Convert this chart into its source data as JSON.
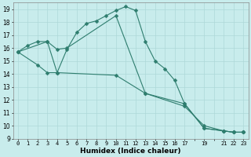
{
  "xlabel": "Humidex (Indice chaleur)",
  "bg_color": "#c8ecec",
  "grid_color": "#aed8d8",
  "line_color": "#2e7d6e",
  "line1_x": [
    0,
    1,
    2,
    3,
    4,
    5,
    6,
    7,
    8,
    9,
    10,
    11,
    12,
    13,
    14,
    15,
    16,
    17,
    19,
    21,
    22,
    23
  ],
  "line1_y": [
    15.7,
    16.2,
    16.5,
    16.5,
    14.1,
    15.9,
    17.2,
    17.9,
    18.1,
    18.5,
    18.9,
    19.2,
    18.9,
    16.5,
    15.0,
    14.4,
    13.5,
    11.7,
    9.8,
    9.6,
    9.5,
    9.5
  ],
  "line2_x": [
    0,
    3,
    4,
    5,
    10,
    13,
    17,
    19,
    21,
    22,
    23
  ],
  "line2_y": [
    15.7,
    16.5,
    15.9,
    16.0,
    18.5,
    12.5,
    11.7,
    9.8,
    9.6,
    9.5,
    9.5
  ],
  "line3_x": [
    0,
    2,
    3,
    4,
    10,
    13,
    17,
    19,
    21,
    22,
    23
  ],
  "line3_y": [
    15.7,
    14.7,
    14.1,
    14.1,
    13.9,
    12.5,
    11.5,
    10.0,
    9.6,
    9.5,
    9.5
  ],
  "xlim": [
    -0.5,
    23.5
  ],
  "ylim": [
    9,
    19.5
  ],
  "yticks": [
    9,
    10,
    11,
    12,
    13,
    14,
    15,
    16,
    17,
    18,
    19
  ],
  "xticks": [
    0,
    1,
    2,
    3,
    4,
    5,
    6,
    7,
    8,
    9,
    10,
    11,
    12,
    13,
    14,
    15,
    16,
    17,
    19,
    21,
    22,
    23
  ]
}
